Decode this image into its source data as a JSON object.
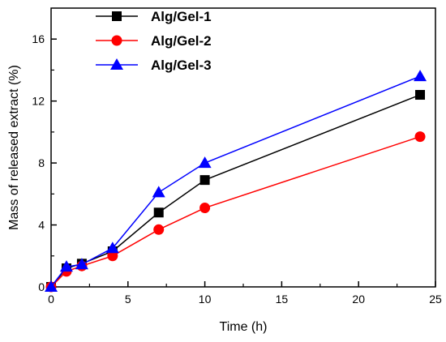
{
  "chart_data": {
    "type": "line",
    "title": "",
    "xlabel": "Time (h)",
    "ylabel": "Mass of released extract (%)",
    "xlim": [
      0,
      25
    ],
    "ylim": [
      0,
      18
    ],
    "xticks": [
      0,
      5,
      10,
      15,
      20,
      25
    ],
    "yticks": [
      0,
      4,
      8,
      12,
      16
    ],
    "grid": false,
    "legend_position": "top-left",
    "x": [
      0,
      1,
      2,
      4,
      7,
      10,
      24
    ],
    "series": [
      {
        "name": "Alg/Gel-1",
        "color": "#000000",
        "marker": "square",
        "values": [
          0,
          1.2,
          1.5,
          2.3,
          4.8,
          6.9,
          12.4
        ]
      },
      {
        "name": "Alg/Gel-2",
        "color": "#ff0000",
        "marker": "circle",
        "values": [
          0,
          1.0,
          1.35,
          2.0,
          3.7,
          5.1,
          9.7
        ]
      },
      {
        "name": "Alg/Gel-3",
        "color": "#0000ff",
        "marker": "triangle",
        "values": [
          0,
          1.3,
          1.45,
          2.5,
          6.1,
          8.0,
          13.6
        ]
      }
    ]
  }
}
